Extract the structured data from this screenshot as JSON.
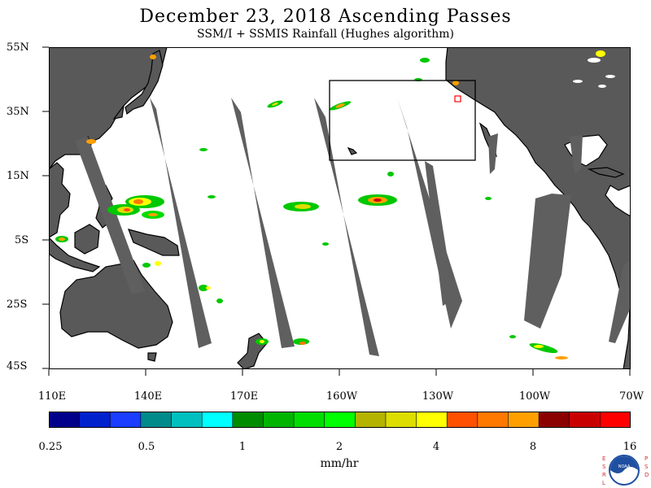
{
  "title": "December 23, 2018  Ascending Passes",
  "subtitle": "SSM/I + SSMIS Rainfall (Hughes algorithm)",
  "lat_labels": [
    "55N",
    "35N",
    "15N",
    "5S",
    "25S",
    "45S"
  ],
  "lon_labels": [
    "110E",
    "140E",
    "170E",
    "160W",
    "130W",
    "100W",
    "70W"
  ],
  "colorbar": {
    "colors": [
      "#00008b",
      "#0022cc",
      "#1a3dff",
      "#008b8b",
      "#00bfbf",
      "#00ffff",
      "#008c00",
      "#00b400",
      "#00dd00",
      "#00ff00",
      "#b4b400",
      "#dddd00",
      "#ffff00",
      "#ff5000",
      "#ff7800",
      "#ffa000",
      "#8b0000",
      "#c80000",
      "#ff0000"
    ],
    "tick_labels": [
      "0.25",
      "0.5",
      "1",
      "2",
      "4",
      "8",
      "16"
    ],
    "units": "mm/hr"
  },
  "logo": {
    "name": "noaa-logo",
    "left_text": "ESRL",
    "right_text": "PSD",
    "center_text": "NOAA"
  },
  "colors": {
    "land": "#595959",
    "coast": "#000000",
    "no_data_swath": "#5f5f5f",
    "ocean": "#ffffff"
  }
}
